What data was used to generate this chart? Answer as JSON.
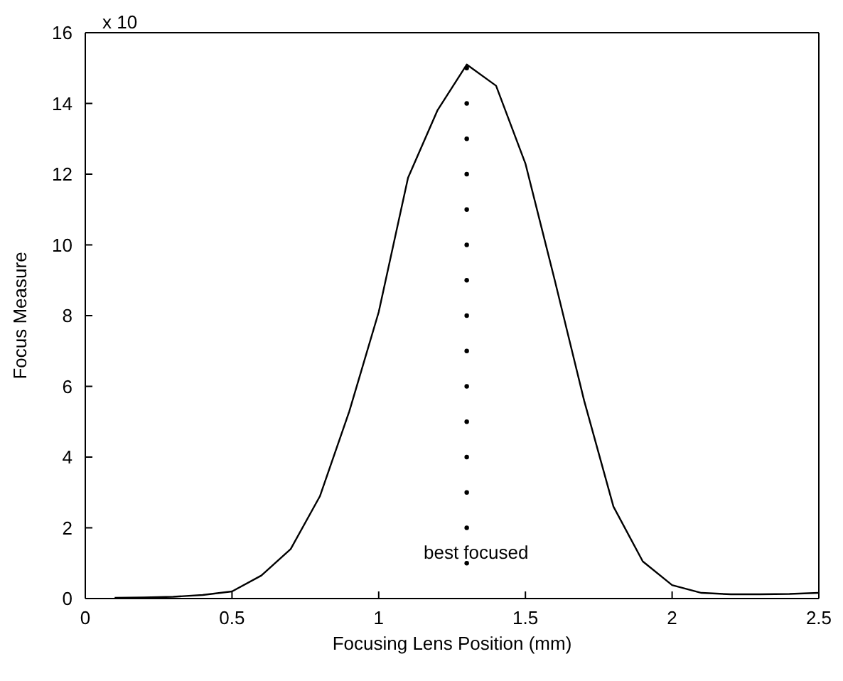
{
  "chart_data": {
    "type": "line",
    "xlabel": "Focusing Lens Position (mm)",
    "ylabel": "Focus Measure",
    "annotations": [
      "x 10",
      "best focused"
    ],
    "xlim": [
      0,
      2.5
    ],
    "xticks": [
      0,
      0.5,
      1,
      1.5,
      2,
      2.5
    ],
    "ylim": [
      0,
      16
    ],
    "yticks": [
      0,
      2,
      4,
      6,
      8,
      10,
      12,
      14,
      16
    ],
    "grid": false,
    "series": [
      {
        "color": "#000000",
        "marker": "none",
        "x": [
          0.1,
          0.2,
          0.3,
          0.4,
          0.5,
          0.6,
          0.7,
          0.8,
          0.9,
          1.0,
          1.1,
          1.2,
          1.3,
          1.4,
          1.5,
          1.6,
          1.7,
          1.8,
          1.9,
          2.0,
          2.1,
          2.2,
          2.3,
          2.4,
          2.5
        ],
        "values": [
          0.02,
          0.03,
          0.05,
          0.1,
          0.2,
          0.65,
          1.4,
          2.9,
          5.3,
          8.1,
          11.9,
          13.8,
          15.1,
          14.5,
          12.3,
          9.0,
          5.6,
          2.6,
          1.05,
          0.38,
          0.16,
          0.12,
          0.12,
          0.13,
          0.16
        ]
      },
      {
        "type": "scatter",
        "color": "#000000",
        "marker": "circle",
        "x": [
          1.3,
          1.3,
          1.3,
          1.3,
          1.3,
          1.3,
          1.3,
          1.3,
          1.3,
          1.3,
          1.3,
          1.3,
          1.3,
          1.3,
          1.3
        ],
        "values": [
          1,
          2,
          3,
          4,
          5,
          6,
          7,
          8,
          9,
          10,
          11,
          12,
          13,
          14,
          15
        ]
      }
    ]
  }
}
